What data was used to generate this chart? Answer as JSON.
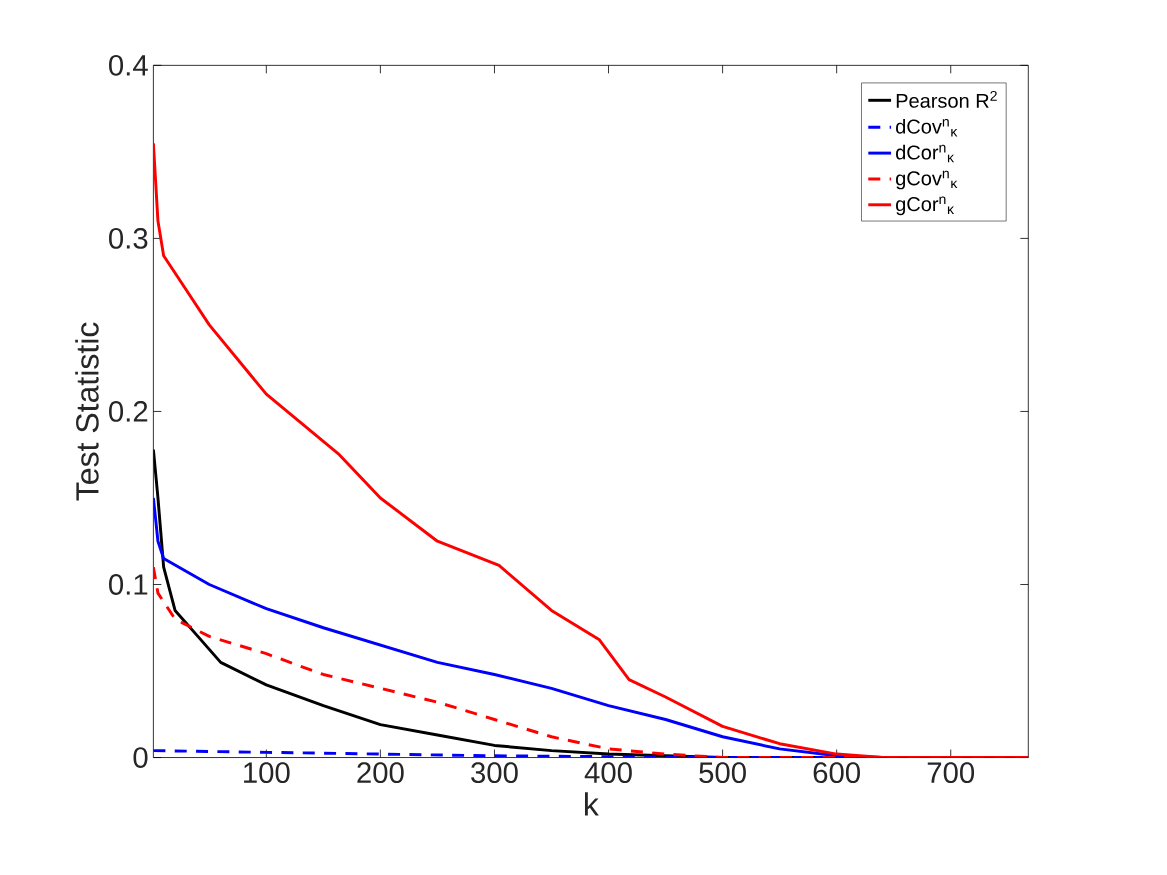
{
  "chart_data": {
    "type": "line",
    "xlabel": "k",
    "ylabel": "Test Statistic",
    "xlim": [
      1,
      768
    ],
    "ylim": [
      0,
      0.4
    ],
    "xticks": [
      100,
      200,
      300,
      400,
      500,
      600,
      700
    ],
    "yticks": [
      0,
      0.1,
      0.2,
      0.3,
      0.4
    ],
    "grid": false,
    "legend": "top right",
    "marker": "none",
    "series": [
      {
        "name": "Pearson R$^{2}$",
        "color": "#000000",
        "line_style": "solid",
        "x": [
          1,
          5,
          10,
          20,
          40,
          60,
          100,
          150,
          200,
          250,
          300,
          350,
          400,
          450,
          500,
          768
        ],
        "values": [
          0.178,
          0.15,
          0.11,
          0.085,
          0.07,
          0.055,
          0.042,
          0.03,
          0.019,
          0.013,
          0.007,
          0.004,
          0.002,
          0.001,
          0,
          0
        ]
      },
      {
        "name": "dCov$^{n}$$_{κ}$",
        "color": "#0000ff",
        "line_style": "dashed",
        "x": [
          1,
          100,
          200,
          300,
          400,
          500,
          768
        ],
        "values": [
          0.004,
          0.003,
          0.002,
          0.001,
          0.0005,
          0,
          0
        ]
      },
      {
        "name": "dCor$^{n}$$_{κ}$",
        "color": "#0000ff",
        "line_style": "solid",
        "x": [
          1,
          5,
          10,
          50,
          100,
          150,
          200,
          250,
          300,
          350,
          400,
          450,
          500,
          550,
          600,
          640,
          768
        ],
        "values": [
          0.15,
          0.125,
          0.115,
          0.1,
          0.086,
          0.075,
          0.065,
          0.055,
          0.048,
          0.04,
          0.03,
          0.022,
          0.012,
          0.005,
          0.001,
          0,
          0
        ]
      },
      {
        "name": "gCov$^{n}$$_{κ}$",
        "color": "#ff0000",
        "line_style": "dashed",
        "x": [
          1,
          5,
          20,
          50,
          100,
          150,
          200,
          250,
          300,
          350,
          400,
          450,
          500,
          768
        ],
        "values": [
          0.11,
          0.095,
          0.08,
          0.07,
          0.06,
          0.048,
          0.04,
          0.032,
          0.022,
          0.012,
          0.005,
          0.002,
          0,
          0
        ]
      },
      {
        "name": "gCor$^{n}$$_{κ}$",
        "color": "#ff0000",
        "line_style": "solid",
        "x": [
          1,
          5,
          10,
          30,
          50,
          100,
          164,
          200,
          250,
          304,
          350,
          392,
          418,
          450,
          500,
          550,
          600,
          640,
          768
        ],
        "values": [
          0.355,
          0.31,
          0.29,
          0.27,
          0.25,
          0.21,
          0.175,
          0.15,
          0.125,
          0.111,
          0.085,
          0.068,
          0.045,
          0.035,
          0.018,
          0.008,
          0.002,
          0,
          0
        ]
      }
    ]
  }
}
